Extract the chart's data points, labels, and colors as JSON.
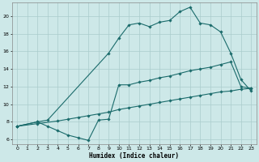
{
  "xlabel": "Humidex (Indice chaleur)",
  "bg_color": "#cde8e8",
  "grid_color": "#aacccc",
  "line_color": "#1a6b6b",
  "xlim": [
    -0.5,
    23.5
  ],
  "ylim": [
    5.5,
    21.5
  ],
  "xticks": [
    0,
    1,
    2,
    3,
    4,
    5,
    6,
    7,
    8,
    9,
    10,
    11,
    12,
    13,
    14,
    15,
    16,
    17,
    18,
    19,
    20,
    21,
    22,
    23
  ],
  "yticks": [
    6,
    8,
    10,
    12,
    14,
    16,
    18,
    20
  ],
  "line1_x": [
    0,
    2,
    3,
    9,
    10,
    11,
    12,
    13,
    14,
    15,
    16,
    17,
    18,
    19,
    20,
    21,
    22,
    23
  ],
  "line1_y": [
    7.5,
    8.0,
    8.2,
    15.8,
    17.5,
    19.0,
    19.2,
    18.8,
    19.3,
    19.5,
    20.5,
    21.0,
    19.2,
    19.0,
    18.2,
    15.8,
    12.8,
    11.5
  ],
  "line2_x": [
    0,
    2,
    4,
    5,
    6,
    7,
    8,
    9,
    10,
    11,
    12,
    13,
    14,
    15,
    16,
    17,
    18,
    19,
    20,
    21,
    22,
    23
  ],
  "line2_y": [
    7.5,
    7.8,
    8.1,
    8.3,
    8.5,
    8.7,
    8.9,
    9.1,
    9.4,
    9.6,
    9.8,
    10.0,
    10.2,
    10.4,
    10.6,
    10.8,
    11.0,
    11.2,
    11.4,
    11.5,
    11.7,
    11.8
  ],
  "line3_x": [
    0,
    2,
    3,
    4,
    5,
    6,
    7,
    8,
    9,
    10,
    11,
    12,
    13,
    14,
    15,
    16,
    17,
    18,
    19,
    20,
    21,
    22,
    23
  ],
  "line3_y": [
    7.5,
    8.0,
    7.5,
    7.0,
    6.5,
    6.2,
    5.9,
    8.2,
    8.3,
    12.2,
    12.2,
    12.5,
    12.7,
    13.0,
    13.2,
    13.5,
    13.8,
    14.0,
    14.2,
    14.5,
    14.8,
    12.0,
    11.8
  ]
}
